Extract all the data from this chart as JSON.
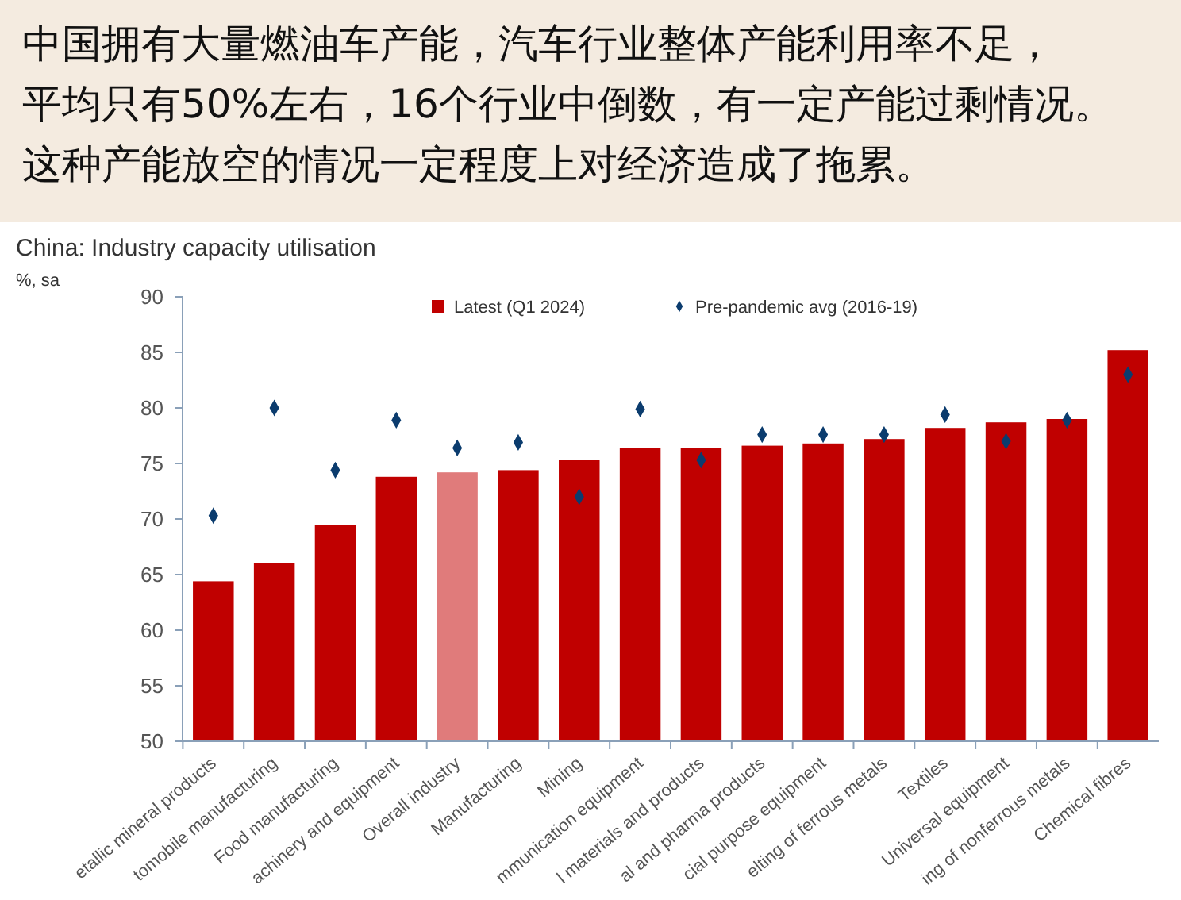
{
  "chart_data": {
    "type": "bar",
    "title": "中国拥有大量燃油车产能，汽车行业整体产能利用率不足，平均只有50%左右，16个行业中倒数，有一定产能过剩情况。这种产能放空的情况一定程度上对经济造成了拖累。",
    "subtitle": "China: Industry capacity utilisation",
    "ylabel": "%, sa",
    "categories": [
      "etallic mineral products",
      "tomobile manufacturing",
      "Food manufacturing",
      "achinery and equipment",
      "Overall industry",
      "Manufacturing",
      "Mining",
      "mmunication equipment",
      "l materials and products",
      "al and pharma products",
      "cial purpose equipment",
      "elting of ferrous metals",
      "Textiles",
      "Universal equipment",
      "ing of nonferrous metals",
      "Chemical fibres"
    ],
    "series": [
      {
        "name": "Latest (Q1 2024)",
        "color": "#c00000",
        "colors": [
          "#c00000",
          "#c00000",
          "#c00000",
          "#c00000",
          "#e07b7b",
          "#c00000",
          "#c00000",
          "#c00000",
          "#c00000",
          "#c00000",
          "#c00000",
          "#c00000",
          "#c00000",
          "#c00000",
          "#c00000",
          "#c00000"
        ],
        "values": [
          64.4,
          66.0,
          69.5,
          73.8,
          74.2,
          74.4,
          75.3,
          76.4,
          76.4,
          76.6,
          76.8,
          77.2,
          78.2,
          78.7,
          79.0,
          85.2
        ]
      },
      {
        "name": "Pre-pandemic avg (2016-19)",
        "type": "scatter",
        "marker": "diamond",
        "color": "#0b3c6e",
        "x": [
          "etallic mineral products",
          "tomobile manufacturing",
          "Food manufacturing",
          "achinery and equipment",
          "Overall industry",
          "Manufacturing",
          "Mining",
          "mmunication equipment",
          "l materials and products",
          "al and pharma products",
          "cial purpose equipment",
          "elting of ferrous metals",
          "Textiles",
          "Universal equipment",
          "ing of nonferrous metals",
          "Chemical fibres"
        ],
        "values": [
          70.3,
          80.0,
          74.4,
          78.9,
          76.4,
          76.9,
          72.0,
          79.9,
          75.3,
          77.6,
          77.6,
          77.6,
          79.4,
          77.0,
          78.9,
          83.0
        ]
      }
    ],
    "ylim": [
      50,
      90
    ],
    "yticks": [
      50,
      55,
      60,
      65,
      70,
      75,
      80,
      85,
      90
    ],
    "grid": false,
    "legend": "top"
  }
}
